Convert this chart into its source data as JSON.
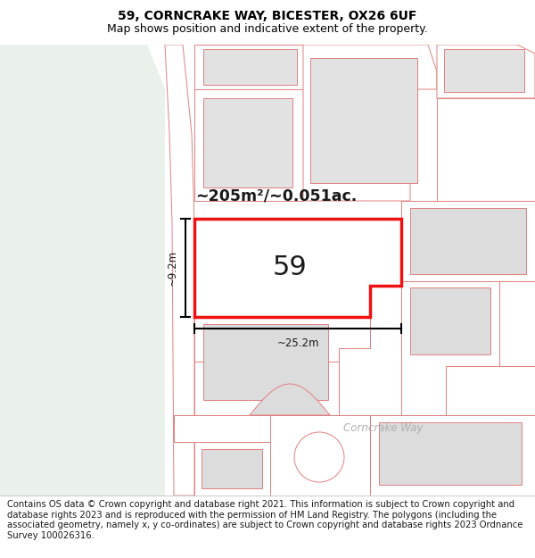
{
  "title": "59, CORNCRAKE WAY, BICESTER, OX26 6UF",
  "subtitle": "Map shows position and indicative extent of the property.",
  "footer": "Contains OS data © Crown copyright and database right 2021. This information is subject to Crown copyright and database rights 2023 and is reproduced with the permission of HM Land Registry. The polygons (including the associated geometry, namely x, y co-ordinates) are subject to Crown copyright and database rights 2023 Ordnance Survey 100026316.",
  "map_bg": "#f9f9f9",
  "green_color": "#eaf0ea",
  "road_label": "Corncrake Way",
  "area_label": "~205m²/~0.051ac.",
  "number_label": "59",
  "dim_width": "~25.2m",
  "dim_height": "~9.2m",
  "plot_outline_color": "#e08080",
  "highlight_color": "#ee1111",
  "title_fontsize": 10,
  "subtitle_fontsize": 9,
  "footer_fontsize": 7.2
}
